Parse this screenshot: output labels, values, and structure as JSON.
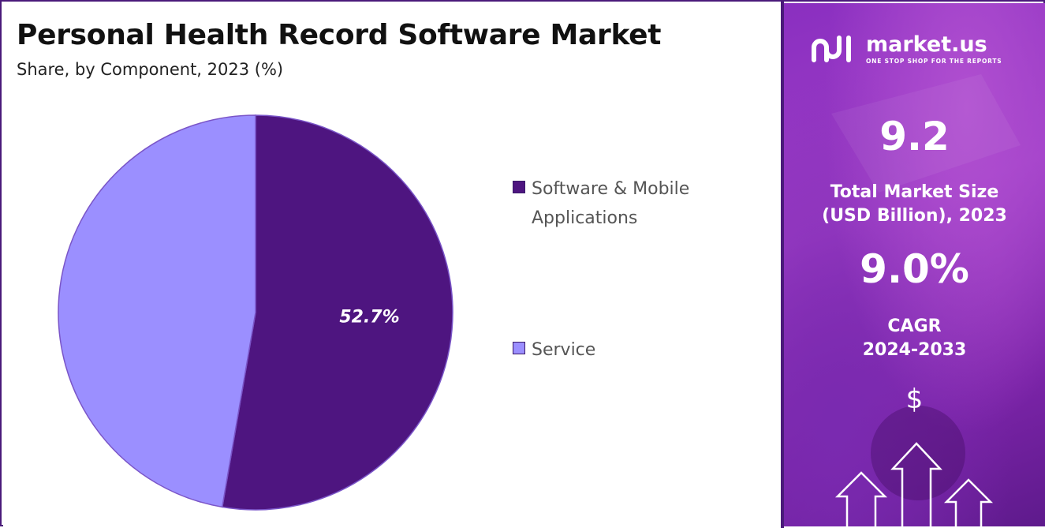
{
  "title": "Personal Health Record Software Market",
  "subtitle": "Share, by Component, 2023 (%)",
  "chart_data": {
    "type": "pie",
    "title": "Personal Health Record Software Market",
    "subtitle": "Share, by Component, 2023 (%)",
    "categories": [
      "Software & Mobile Applications",
      "Service"
    ],
    "values": [
      52.7,
      47.3
    ],
    "data_labels": [
      "52.7%",
      ""
    ],
    "colors": [
      "#4e1580",
      "#9b8fff"
    ],
    "legend_position": "right"
  },
  "sidebar": {
    "brand": "market.us",
    "tagline": "ONE STOP SHOP FOR THE REPORTS",
    "market_size_value": "9.2",
    "market_size_label_line1": "Total Market Size",
    "market_size_label_line2": "(USD Billion), 2023",
    "cagr_value": "9.0%",
    "cagr_label_line1": "CAGR",
    "cagr_label_line2": "2024-2033",
    "currency_symbol": "$",
    "icons": [
      "market-us-logo-icon",
      "dollar-icon",
      "growth-arrows-icon"
    ]
  }
}
